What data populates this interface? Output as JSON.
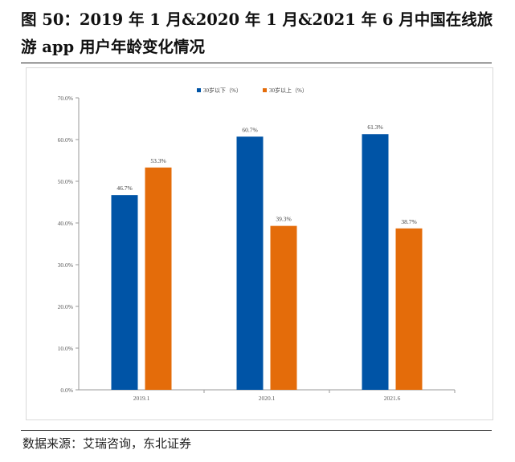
{
  "figure": {
    "title": "图 50：2019 年 1 月&2020 年 1 月&2021 年 6 月中国在线旅游 app 用户年龄变化情况",
    "source": "数据来源：艾瑞咨询，东北证券"
  },
  "chart_data": {
    "type": "bar",
    "categories": [
      "2019.1",
      "2020.1",
      "2021.6"
    ],
    "series": [
      {
        "name": "30岁以下（%）",
        "values": [
          46.7,
          60.7,
          61.3
        ],
        "labels": [
          "46.7%",
          "60.7%",
          "61.3%"
        ],
        "color": "#0054a6"
      },
      {
        "name": "30岁以上（%）",
        "values": [
          53.3,
          39.3,
          38.7
        ],
        "labels": [
          "53.3%",
          "39.3%",
          "38.7%"
        ],
        "color": "#e46c0a"
      }
    ],
    "ylim": [
      0,
      70
    ],
    "yticks": [
      0,
      10,
      20,
      30,
      40,
      50,
      60,
      70
    ],
    "ytick_labels": [
      "0.0%",
      "10.0%",
      "20.0%",
      "30.0%",
      "40.0%",
      "50.0%",
      "60.0%",
      "70.0%"
    ],
    "grid": false,
    "legend": "top-center"
  }
}
